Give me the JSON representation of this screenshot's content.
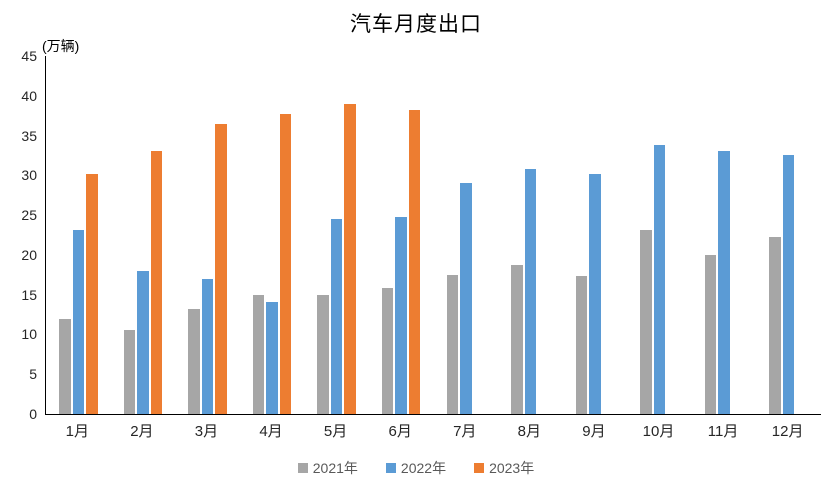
{
  "title": "汽车月度出口",
  "unit_label": "(万辆)",
  "colors": {
    "series_2021": "#A6A6A6",
    "series_2022": "#5B9BD5",
    "series_2023": "#ED7D31",
    "axis_line": "#000000",
    "tick_text": "#262626",
    "legend_text": "#595959"
  },
  "chart_data": {
    "type": "bar",
    "title": "汽车月度出口",
    "ylabel": "(万辆)",
    "xlabel": "",
    "categories": [
      "1月",
      "2月",
      "3月",
      "4月",
      "5月",
      "6月",
      "7月",
      "8月",
      "9月",
      "10月",
      "11月",
      "12月"
    ],
    "series": [
      {
        "name": "2021年",
        "color": "#A6A6A6",
        "values": [
          12.0,
          10.5,
          13.2,
          15.0,
          15.0,
          15.8,
          17.5,
          18.7,
          17.3,
          23.1,
          20.0,
          22.3
        ]
      },
      {
        "name": "2022年",
        "color": "#5B9BD5",
        "values": [
          23.1,
          18.0,
          17.0,
          14.1,
          24.5,
          24.8,
          29.0,
          30.8,
          30.2,
          33.8,
          33.0,
          32.5
        ]
      },
      {
        "name": "2023年",
        "color": "#ED7D31",
        "values": [
          30.2,
          33.0,
          36.4,
          37.7,
          39.0,
          38.2,
          null,
          null,
          null,
          null,
          null,
          null
        ]
      }
    ],
    "ylim": [
      0,
      45
    ],
    "ytick_step": 5,
    "yticks": [
      0,
      5,
      10,
      15,
      20,
      25,
      30,
      35,
      40,
      45
    ],
    "grid": false,
    "legend_position": "bottom"
  }
}
